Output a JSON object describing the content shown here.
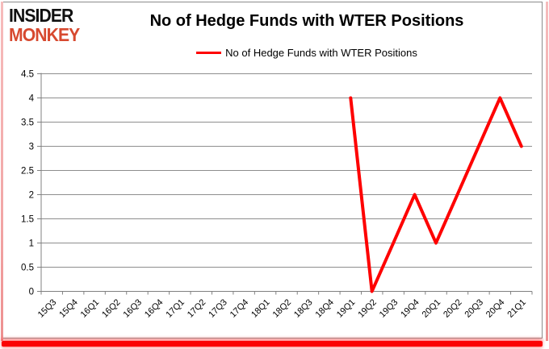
{
  "header": {
    "logo_line1": "INSIDER",
    "logo_line2": "MONKEY",
    "title": "No of Hedge Funds with WTER Positions"
  },
  "legend": {
    "label": "No of Hedge Funds with WTER Positions"
  },
  "chart_data": {
    "type": "line",
    "title": "No of Hedge Funds with WTER Positions",
    "xlabel": "",
    "ylabel": "",
    "categories": [
      "15Q3",
      "15Q4",
      "16Q1",
      "16Q2",
      "16Q3",
      "16Q4",
      "17Q1",
      "17Q2",
      "17Q3",
      "17Q4",
      "18Q1",
      "18Q2",
      "18Q3",
      "18Q4",
      "19Q1",
      "19Q2",
      "19Q3",
      "19Q4",
      "20Q1",
      "20Q2",
      "20Q3",
      "20Q4",
      "21Q1"
    ],
    "series": [
      {
        "name": "No of Hedge Funds with WTER Positions",
        "color": "#fe0000",
        "values": [
          null,
          null,
          null,
          null,
          null,
          null,
          null,
          null,
          null,
          null,
          null,
          null,
          null,
          null,
          4,
          0,
          1,
          2,
          1,
          2,
          3,
          4,
          3
        ]
      }
    ],
    "ylim": [
      0,
      4.5
    ],
    "ytick_labels": [
      "0",
      "0.5",
      "1",
      "1.5",
      "2",
      "2.5",
      "3",
      "3.5",
      "4",
      "4.5"
    ],
    "grid": true,
    "legend_position": "top-center"
  },
  "colors": {
    "line_red": "#fe0000",
    "logo_black": "#111111",
    "logo_red": "#d7492f",
    "grid_gray": "#8e8e8e",
    "axis_gray": "#808080",
    "border_gray": "#8c8c8c",
    "edge_pink": "#f2a8a8",
    "bottom_red": "#fb0404"
  }
}
